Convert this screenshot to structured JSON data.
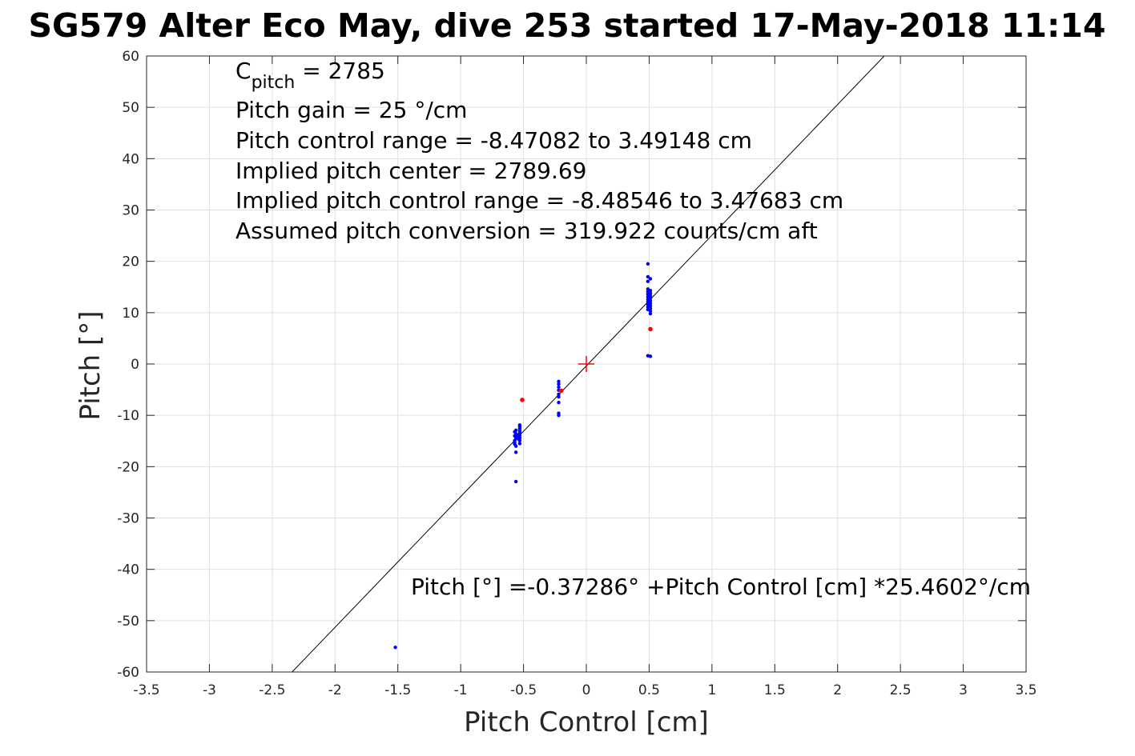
{
  "chart_data": {
    "type": "scatter",
    "title": "SG579 Alter Eco May, dive 253 started 17-May-2018 11:14",
    "xlabel": "Pitch Control [cm]",
    "ylabel": "Pitch [°]",
    "xlim": [
      -3.5,
      3.5
    ],
    "ylim": [
      -60,
      60
    ],
    "xticks": [
      -3.5,
      -3,
      -2.5,
      -2,
      -1.5,
      -1,
      -0.5,
      0,
      0.5,
      1,
      1.5,
      2,
      2.5,
      3,
      3.5
    ],
    "xtick_labels": [
      "-3.5",
      "-3",
      "-2.5",
      "-2",
      "-1.5",
      "-1",
      "-0.5",
      "0",
      "0.5",
      "1",
      "1.5",
      "2",
      "2.5",
      "3",
      "3.5"
    ],
    "yticks": [
      60,
      50,
      40,
      30,
      20,
      10,
      0,
      -10,
      -20,
      -30,
      -40,
      -50,
      -60
    ],
    "ytick_labels": [
      "60",
      "50",
      "40",
      "30",
      "20",
      "10",
      "0",
      "-10",
      "-20",
      "-30",
      "-40",
      "-50",
      "-60"
    ],
    "grid": true,
    "colors": {
      "data_points": "#0000ff",
      "flagged_points": "#ff0000",
      "center_marker": "#ff0000",
      "fit_line": "#000000",
      "grid": "#e0e0e0"
    },
    "annotations": {
      "c_pitch_main": "C",
      "c_pitch_sub": "pitch",
      "c_pitch_value": " = 2785",
      "lines": [
        "Pitch gain = 25 °/cm",
        "Pitch control range = -8.47082 to 3.49148 cm",
        "Implied pitch center = 2789.69",
        "Implied pitch control range = -8.48546 to 3.47683 cm",
        "Assumed pitch conversion = 319.922 counts/cm aft"
      ],
      "fit_equation": "Pitch [°] =-0.37286° +Pitch Control [cm] *25.4602°/cm"
    },
    "fit_line": {
      "intercept": -0.37286,
      "slope": 25.4602
    },
    "center_marker": {
      "x": 0,
      "y": 0
    },
    "series": [
      {
        "name": "",
        "color": "#0000ff",
        "points": [
          [
            -1.52,
            -55.2
          ],
          [
            -0.56,
            -22.9
          ],
          [
            -0.56,
            -17.2
          ],
          [
            -0.56,
            -16.0
          ],
          [
            -0.57,
            -15.3
          ],
          [
            -0.57,
            -14.9
          ],
          [
            -0.56,
            -14.5
          ],
          [
            -0.57,
            -14.0
          ],
          [
            -0.56,
            -13.6
          ],
          [
            -0.57,
            -13.2
          ],
          [
            -0.56,
            -12.9
          ],
          [
            -0.57,
            -15.6
          ],
          [
            -0.53,
            -15.5
          ],
          [
            -0.53,
            -14.9
          ],
          [
            -0.53,
            -14.4
          ],
          [
            -0.53,
            -13.9
          ],
          [
            -0.53,
            -13.4
          ],
          [
            -0.53,
            -13.0
          ],
          [
            -0.53,
            -12.6
          ],
          [
            -0.53,
            -12.2
          ],
          [
            -0.53,
            -11.9
          ],
          [
            -0.54,
            -14.6
          ],
          [
            -0.54,
            -13.8
          ],
          [
            -0.55,
            -14.2
          ],
          [
            -0.22,
            -10.0
          ],
          [
            -0.22,
            -9.6
          ],
          [
            -0.22,
            -7.5
          ],
          [
            -0.22,
            -6.4
          ],
          [
            -0.22,
            -5.9
          ],
          [
            -0.22,
            -5.1
          ],
          [
            -0.22,
            -4.5
          ],
          [
            -0.22,
            -3.9
          ],
          [
            -0.22,
            -3.4
          ],
          [
            0.49,
            19.5
          ],
          [
            0.49,
            17.0
          ],
          [
            0.49,
            16.1
          ],
          [
            0.51,
            16.6
          ],
          [
            0.49,
            14.6
          ],
          [
            0.49,
            14.1
          ],
          [
            0.49,
            13.6
          ],
          [
            0.49,
            13.1
          ],
          [
            0.49,
            12.6
          ],
          [
            0.49,
            12.1
          ],
          [
            0.49,
            11.6
          ],
          [
            0.49,
            11.1
          ],
          [
            0.49,
            10.6
          ],
          [
            0.51,
            14.3
          ],
          [
            0.51,
            13.8
          ],
          [
            0.51,
            13.3
          ],
          [
            0.51,
            12.8
          ],
          [
            0.51,
            12.3
          ],
          [
            0.51,
            11.8
          ],
          [
            0.51,
            11.3
          ],
          [
            0.51,
            10.8
          ],
          [
            0.51,
            10.3
          ],
          [
            0.51,
            9.8
          ],
          [
            0.49,
            1.6
          ],
          [
            0.51,
            1.5
          ]
        ]
      },
      {
        "name": "",
        "color": "#ff0000",
        "points": [
          [
            -0.51,
            -7.0
          ],
          [
            -0.2,
            -5.2
          ],
          [
            0.51,
            6.8
          ]
        ]
      }
    ]
  }
}
